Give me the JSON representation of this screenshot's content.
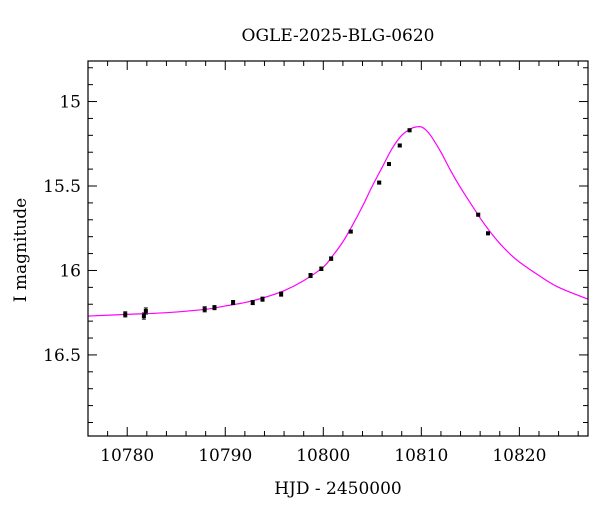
{
  "chart_data": {
    "type": "scatter",
    "title": "OGLE-2025-BLG-0620",
    "xlabel": "HJD - 2450000",
    "ylabel": "I magnitude",
    "xlim": [
      10776,
      10827
    ],
    "ylim": [
      16.98,
      14.76
    ],
    "y_inverted": true,
    "x_major_ticks": [
      10780,
      10790,
      10800,
      10810,
      10820
    ],
    "x_minor_step": 2,
    "y_major_ticks": [
      15,
      15.5,
      16,
      16.5
    ],
    "y_major_tick_labels": [
      "15",
      "15.5",
      "16",
      "16.5"
    ],
    "y_minor_step": 0.1,
    "ticks_on_all_sides": true,
    "grid": false,
    "legend": "none",
    "series": [
      {
        "kind": "points_with_errorbars",
        "color": "#000000",
        "points": [
          {
            "x": 10779.8,
            "y": 16.26,
            "err": 0.015
          },
          {
            "x": 10781.7,
            "y": 16.27,
            "err": 0.018
          },
          {
            "x": 10781.9,
            "y": 16.24,
            "err": 0.018
          },
          {
            "x": 10787.9,
            "y": 16.23,
            "err": 0.015
          },
          {
            "x": 10788.9,
            "y": 16.22,
            "err": 0.012
          },
          {
            "x": 10790.8,
            "y": 16.19,
            "err": 0.012
          },
          {
            "x": 10792.8,
            "y": 16.19,
            "err": 0.012
          },
          {
            "x": 10793.8,
            "y": 16.17,
            "err": 0.012
          },
          {
            "x": 10795.7,
            "y": 16.14,
            "err": 0.012
          },
          {
            "x": 10798.7,
            "y": 16.03,
            "err": 0.012
          },
          {
            "x": 10799.8,
            "y": 15.99,
            "err": 0.01
          },
          {
            "x": 10800.8,
            "y": 15.93,
            "err": 0.01
          },
          {
            "x": 10802.8,
            "y": 15.77,
            "err": 0.008
          },
          {
            "x": 10805.7,
            "y": 15.48,
            "err": 0.008
          },
          {
            "x": 10806.7,
            "y": 15.37,
            "err": 0.008
          },
          {
            "x": 10807.8,
            "y": 15.26,
            "err": 0.008
          },
          {
            "x": 10808.8,
            "y": 15.17,
            "err": 0.008
          },
          {
            "x": 10815.8,
            "y": 15.67,
            "err": 0.008
          },
          {
            "x": 10816.8,
            "y": 15.78,
            "err": 0.008
          }
        ]
      },
      {
        "kind": "model_curve",
        "color": "#ff00ff",
        "x": [
          10776,
          10780,
          10784,
          10788,
          10790,
          10792,
          10794,
          10796,
          10798,
          10800,
          10801,
          10802,
          10803,
          10804,
          10805,
          10806,
          10807,
          10808,
          10809,
          10809.5,
          10810,
          10810.5,
          10811,
          10812,
          10813,
          10814,
          10815,
          10816,
          10817,
          10818,
          10819,
          10820,
          10822,
          10824,
          10827
        ],
        "y": [
          16.27,
          16.26,
          16.25,
          16.23,
          16.21,
          16.19,
          16.16,
          16.12,
          16.06,
          15.98,
          15.91,
          15.83,
          15.73,
          15.62,
          15.5,
          15.39,
          15.28,
          15.2,
          15.159,
          15.15,
          15.15,
          15.17,
          15.205,
          15.3,
          15.41,
          15.51,
          15.6,
          15.69,
          15.77,
          15.84,
          15.9,
          15.95,
          16.03,
          16.1,
          16.17
        ]
      }
    ]
  }
}
